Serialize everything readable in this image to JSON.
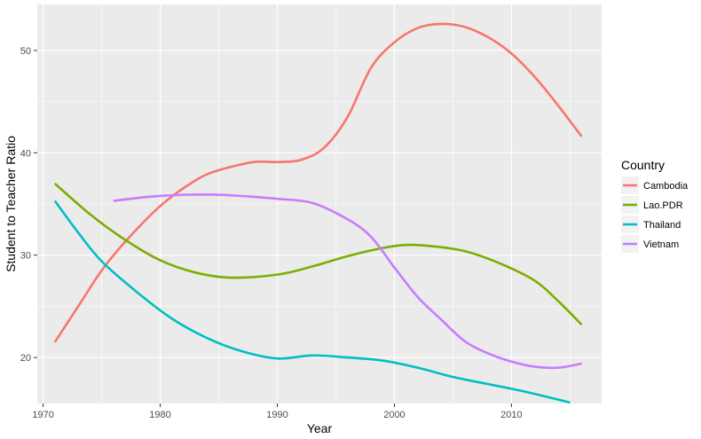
{
  "chart_data": {
    "type": "line",
    "xlabel": "Year",
    "ylabel": "Student to Teacher Ratio",
    "xlim": [
      1969.5,
      2017.7
    ],
    "ylim": [
      15.5,
      54.5
    ],
    "x_ticks": [
      1970,
      1980,
      1990,
      2000,
      2010
    ],
    "x_tick_labels": [
      "1970",
      "1980",
      "1990",
      "2000",
      "2010"
    ],
    "y_ticks": [
      20,
      30,
      40,
      50
    ],
    "y_tick_labels": [
      "20",
      "30",
      "40",
      "50"
    ],
    "grid": true,
    "legend": {
      "title": "Country",
      "position": "right"
    },
    "series": [
      {
        "name": "Cambodia",
        "color": "#F8766D",
        "x": [
          1971,
          1973,
          1975,
          1977,
          1980,
          1983,
          1985,
          1988,
          1990,
          1992,
          1994,
          1996,
          1998,
          2000,
          2002,
          2004,
          2006,
          2008,
          2010,
          2012,
          2014,
          2016
        ],
        "y": [
          21.5,
          25,
          28.5,
          31.3,
          34.8,
          37.3,
          38.3,
          39.1,
          39.1,
          39.3,
          40.5,
          43.5,
          48.3,
          50.8,
          52.2,
          52.6,
          52.3,
          51.3,
          49.7,
          47.4,
          44.6,
          41.6
        ]
      },
      {
        "name": "Lao.PDR",
        "color": "#7CAE00",
        "x": [
          1971,
          1974,
          1977,
          1980,
          1983,
          1986,
          1990,
          1993,
          1996,
          1999,
          2001,
          2003,
          2006,
          2009,
          2012,
          2014,
          2016
        ],
        "y": [
          37,
          34,
          31.5,
          29.5,
          28.3,
          27.8,
          28.1,
          28.9,
          29.9,
          30.7,
          31,
          30.9,
          30.4,
          29.2,
          27.5,
          25.5,
          23.2
        ]
      },
      {
        "name": "Thailand",
        "color": "#00BFC4",
        "x": [
          1971,
          1973,
          1975,
          1978,
          1981,
          1984,
          1987,
          1990,
          1993,
          1996,
          1999,
          2002,
          2005,
          2008,
          2011,
          2015
        ],
        "y": [
          35.3,
          32.2,
          29.4,
          26.4,
          23.8,
          21.9,
          20.6,
          19.9,
          20.2,
          20,
          19.7,
          19,
          18.1,
          17.4,
          16.7,
          15.6
        ]
      },
      {
        "name": "Vietnam",
        "color": "#C77CFF",
        "x": [
          1976,
          1979,
          1982,
          1985,
          1988,
          1990,
          1993,
          1996,
          1998,
          2000,
          2002,
          2004,
          2006,
          2008,
          2010,
          2012,
          2014,
          2016
        ],
        "y": [
          35.3,
          35.7,
          35.9,
          35.9,
          35.7,
          35.5,
          35.1,
          33.5,
          31.8,
          28.8,
          25.9,
          23.7,
          21.6,
          20.4,
          19.6,
          19.1,
          19,
          19.4
        ]
      }
    ]
  }
}
